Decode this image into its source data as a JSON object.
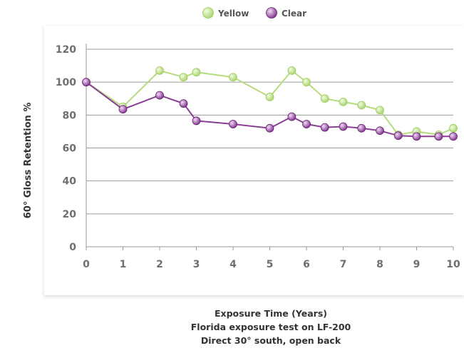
{
  "chart_data": {
    "type": "line",
    "ylabel": "60° Gloss Retention %",
    "xlabel_lines": [
      "Exposure Time (Years)",
      "Florida exposure test on LF-200",
      "Direct 30° south, open back"
    ],
    "xlim": [
      0,
      10
    ],
    "ylim": [
      0,
      120
    ],
    "x_ticks": [
      0,
      1,
      2,
      3,
      4,
      5,
      6,
      7,
      8,
      9,
      10
    ],
    "y_ticks": [
      0,
      20,
      40,
      60,
      80,
      100,
      120
    ],
    "grid": "horizontal",
    "legend_position": "top-center",
    "series": [
      {
        "name": "Yellow",
        "color": "#b5dc7f",
        "points": [
          [
            0,
            100
          ],
          [
            1,
            85
          ],
          [
            2,
            107
          ],
          [
            2.65,
            103
          ],
          [
            3,
            106
          ],
          [
            4,
            103
          ],
          [
            5,
            91
          ],
          [
            5.6,
            107
          ],
          [
            6,
            100
          ],
          [
            6.5,
            90
          ],
          [
            7,
            88
          ],
          [
            7.5,
            86
          ],
          [
            8,
            83
          ],
          [
            8.5,
            68
          ],
          [
            9,
            70
          ],
          [
            9.6,
            68
          ],
          [
            10,
            72
          ]
        ]
      },
      {
        "name": "Clear",
        "color": "#8a3e96",
        "points": [
          [
            0,
            100
          ],
          [
            1,
            83.5
          ],
          [
            2,
            92
          ],
          [
            2.65,
            87
          ],
          [
            3,
            76.5
          ],
          [
            4,
            74.5
          ],
          [
            5,
            72
          ],
          [
            5.6,
            79
          ],
          [
            6,
            74.5
          ],
          [
            6.5,
            72.5
          ],
          [
            7,
            73
          ],
          [
            7.5,
            72
          ],
          [
            8,
            70.5
          ],
          [
            8.5,
            67.5
          ],
          [
            9,
            67
          ],
          [
            9.6,
            67
          ],
          [
            10,
            67
          ]
        ]
      }
    ]
  }
}
